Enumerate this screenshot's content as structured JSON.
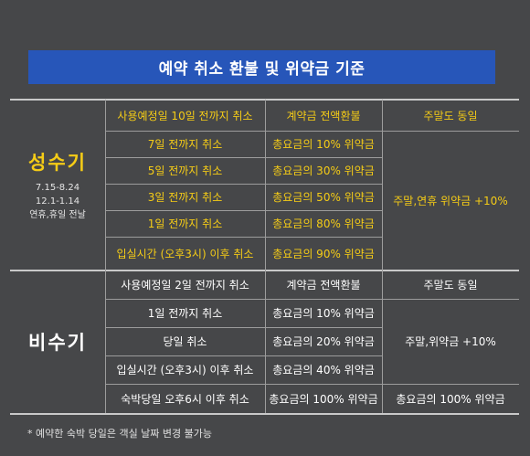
{
  "title": "예약 취소 환불 및 위약금 기준",
  "peak": {
    "name": "성수기",
    "periods": [
      "7.15-8.24",
      "12.1-1.14",
      "연휴,휴일 전날"
    ],
    "rows": [
      {
        "timing": "사용예정일 10일 전까지 취소",
        "refund": "계약금 전액환불"
      },
      {
        "timing": "7일 전까지 취소",
        "refund": "총요금의 10% 위약금"
      },
      {
        "timing": "5일 전까지 취소",
        "refund": "총요금의 30% 위약금"
      },
      {
        "timing": "3일 전까지 취소",
        "refund": "총요금의 50% 위약금"
      },
      {
        "timing": "1일 전까지 취소",
        "refund": "총요금의 80% 위약금"
      },
      {
        "timing": "입실시간 (오후3시) 이후 취소",
        "refund": "총요금의 90% 위약금"
      }
    ],
    "weekend_first": "주말도 동일",
    "weekend_rest": "주말,연휴 위약금 +10%"
  },
  "offpeak": {
    "name": "비수기",
    "rows": [
      {
        "timing": "사용예정일 2일 전까지 취소",
        "refund": "계약금 전액환불"
      },
      {
        "timing": "1일 전까지 취소",
        "refund": "총요금의 10% 위약금"
      },
      {
        "timing": "당일 취소",
        "refund": "총요금의 20% 위약금"
      },
      {
        "timing": "입실시간 (오후3시) 이후 취소",
        "refund": "총요금의 40% 위약금"
      },
      {
        "timing": "숙박당일 오후6시 이후 취소",
        "refund": "총요금의 100% 위약금"
      }
    ],
    "weekend_first": "주말도 동일",
    "weekend_mid": "주말,위약금 +10%",
    "weekend_last": "총요금의 100% 위약금"
  },
  "footnote": "* 예약한 숙박 당일은 객실 날짜 변경 불가능",
  "colors": {
    "background": "#464749",
    "title_bar": "#2756b9",
    "peak_text": "#f5cc16",
    "offpeak_text": "#ffffff"
  }
}
